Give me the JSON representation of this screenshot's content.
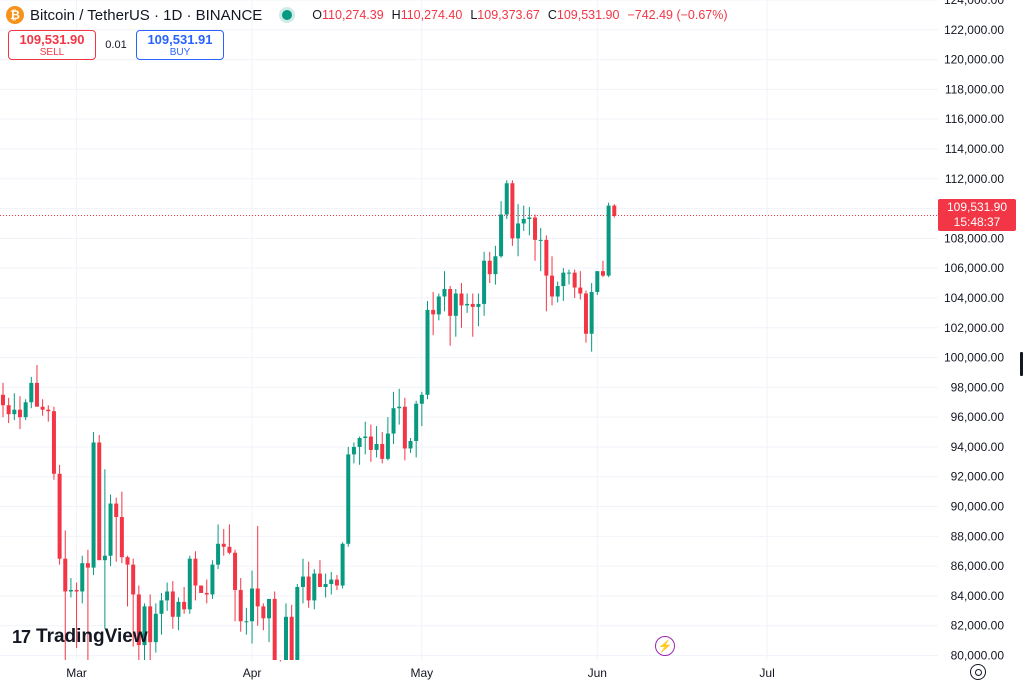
{
  "header": {
    "symbol_title": "Bitcoin / TetherUS · 1D · BINANCE",
    "coin_icon": "bitcoin-icon",
    "ohlc": {
      "o_label": "O",
      "o_value": "110,274.39",
      "h_label": "H",
      "h_value": "110,274.40",
      "l_label": "L",
      "l_value": "109,373.67",
      "c_label": "C",
      "c_value": "109,531.90",
      "change": "−742.49 (−0.67%)"
    }
  },
  "trade": {
    "sell_price": "109,531.90",
    "sell_label": "SELL",
    "spread": "0.01",
    "buy_price": "109,531.91",
    "buy_label": "BUY"
  },
  "last_price": {
    "value": "109,531.90",
    "countdown": "15:48:37"
  },
  "logo": {
    "text": "TradingView",
    "mark": "TV"
  },
  "colors": {
    "up": "#089981",
    "down": "#f23645",
    "buy": "#2962ff",
    "grid": "#f0f3fa"
  },
  "chart_data": {
    "type": "candlestick",
    "y_ticks": [
      80000,
      82000,
      84000,
      86000,
      88000,
      90000,
      92000,
      94000,
      96000,
      98000,
      100000,
      102000,
      104000,
      106000,
      108000,
      110000,
      112000,
      114000,
      116000,
      118000,
      120000,
      122000,
      124000
    ],
    "y_tick_labels": [
      "80,000.00",
      "82,000.00",
      "84,000.00",
      "86,000.00",
      "88,000.00",
      "90,000.00",
      "92,000.00",
      "94,000.00",
      "96,000.00",
      "98,000.00",
      "100,000.00",
      "102,000.00",
      "104,000.00",
      "106,000.00",
      "108,000.00",
      "110,000.00",
      "112,000.00",
      "114,000.00",
      "116,000.00",
      "118,000.00",
      "120,000.00",
      "122,000.00",
      "124,000.00"
    ],
    "x_labels": [
      {
        "label": "Mar",
        "day": 13
      },
      {
        "label": "Apr",
        "day": 44
      },
      {
        "label": "May",
        "day": 74
      },
      {
        "label": "Jun",
        "day": 105
      },
      {
        "label": "Jul",
        "day": 135
      }
    ],
    "last_price": 109531.9,
    "ylim": [
      79000,
      125000
    ],
    "candles": [
      [
        97500,
        98300,
        96000,
        96800
      ],
      [
        96800,
        97300,
        95600,
        96200
      ],
      [
        96200,
        97600,
        95800,
        96500
      ],
      [
        96500,
        97400,
        95200,
        96000
      ],
      [
        96000,
        97200,
        95800,
        97000
      ],
      [
        97000,
        98700,
        96600,
        98300
      ],
      [
        98300,
        99500,
        96800,
        96700
      ],
      [
        96700,
        97200,
        96100,
        96500
      ],
      [
        96500,
        96800,
        95700,
        96400
      ],
      [
        96400,
        96700,
        91800,
        92200
      ],
      [
        92200,
        92800,
        86100,
        86500
      ],
      [
        86500,
        88400,
        78200,
        84300
      ],
      [
        84300,
        85200,
        83900,
        84400
      ],
      [
        84400,
        84900,
        80500,
        84300
      ],
      [
        84300,
        86700,
        83500,
        86200
      ],
      [
        86200,
        87100,
        79300,
        85900
      ],
      [
        85900,
        95000,
        85400,
        94300
      ],
      [
        94300,
        94800,
        86400,
        86400
      ],
      [
        86400,
        92500,
        81800,
        86700
      ],
      [
        86700,
        90800,
        86000,
        90200
      ],
      [
        90200,
        90600,
        86300,
        89300
      ],
      [
        89300,
        91000,
        86200,
        86600
      ],
      [
        86600,
        86700,
        83300,
        86100
      ],
      [
        86100,
        86500,
        80600,
        84100
      ],
      [
        84100,
        84700,
        79000,
        80700
      ],
      [
        80700,
        83500,
        78200,
        83300
      ],
      [
        83300,
        84100,
        78700,
        80900
      ],
      [
        80900,
        83500,
        80200,
        82800
      ],
      [
        82800,
        84200,
        81400,
        83700
      ],
      [
        83700,
        84900,
        83000,
        84300
      ],
      [
        84300,
        85000,
        81800,
        82600
      ],
      [
        82600,
        83900,
        81700,
        83600
      ],
      [
        83600,
        84600,
        82800,
        83100
      ],
      [
        83100,
        86700,
        82800,
        86500
      ],
      [
        86500,
        87000,
        83700,
        84700
      ],
      [
        84700,
        84700,
        84200,
        84200
      ],
      [
        84200,
        85100,
        83500,
        84100
      ],
      [
        84100,
        86400,
        83800,
        86100
      ],
      [
        86100,
        88800,
        85800,
        87500
      ],
      [
        87500,
        88500,
        86700,
        87300
      ],
      [
        87300,
        88800,
        86800,
        86900
      ],
      [
        86900,
        87100,
        82300,
        84400
      ],
      [
        84400,
        85200,
        81600,
        82300
      ],
      [
        82300,
        83200,
        81400,
        82300
      ],
      [
        82300,
        85700,
        80800,
        84500
      ],
      [
        84500,
        88700,
        82000,
        83300
      ],
      [
        83300,
        83500,
        81700,
        82500
      ],
      [
        82500,
        83700,
        80900,
        83800
      ],
      [
        83800,
        84300,
        77000,
        78400
      ],
      [
        78400,
        79600,
        75000,
        76200
      ],
      [
        76200,
        83500,
        76000,
        82600
      ],
      [
        82600,
        83400,
        78700,
        79500
      ],
      [
        79500,
        84800,
        79100,
        84600
      ],
      [
        84600,
        86500,
        83500,
        85300
      ],
      [
        85300,
        86300,
        83200,
        83700
      ],
      [
        83700,
        85800,
        83100,
        85500
      ],
      [
        85500,
        86400,
        84700,
        84600
      ],
      [
        84600,
        85500,
        83900,
        84800
      ],
      [
        84800,
        85600,
        84100,
        85100
      ],
      [
        85100,
        85400,
        84400,
        84700
      ],
      [
        84700,
        87600,
        84500,
        87500
      ],
      [
        87500,
        94000,
        87300,
        93500
      ],
      [
        93500,
        94300,
        92900,
        94000
      ],
      [
        94000,
        94700,
        92800,
        94600
      ],
      [
        94600,
        95700,
        93500,
        94700
      ],
      [
        94700,
        95500,
        93000,
        93800
      ],
      [
        93800,
        95400,
        93300,
        94200
      ],
      [
        94200,
        95000,
        92900,
        93200
      ],
      [
        93200,
        96000,
        93100,
        94900
      ],
      [
        94900,
        97700,
        94200,
        96600
      ],
      [
        96600,
        97900,
        95500,
        96700
      ],
      [
        96700,
        97300,
        93100,
        93900
      ],
      [
        93900,
        94600,
        93600,
        94400
      ],
      [
        94400,
        97100,
        93300,
        96900
      ],
      [
        96900,
        97700,
        95400,
        97500
      ],
      [
        97500,
        103800,
        97200,
        103200
      ],
      [
        103200,
        104400,
        101500,
        102900
      ],
      [
        102900,
        104300,
        102500,
        104100
      ],
      [
        104100,
        105800,
        103100,
        104600
      ],
      [
        104600,
        104800,
        100800,
        102800
      ],
      [
        102800,
        104600,
        101400,
        104300
      ],
      [
        104300,
        105000,
        102000,
        103500
      ],
      [
        103500,
        104300,
        103000,
        103600
      ],
      [
        103600,
        104300,
        101400,
        103400
      ],
      [
        103400,
        104300,
        102100,
        103600
      ],
      [
        103600,
        107100,
        102800,
        106500
      ],
      [
        106500,
        107100,
        105000,
        105600
      ],
      [
        105600,
        107500,
        104900,
        106800
      ],
      [
        106800,
        110500,
        106700,
        109600
      ],
      [
        109600,
        111900,
        109300,
        111700
      ],
      [
        111700,
        111900,
        107500,
        108000
      ],
      [
        108000,
        110300,
        106800,
        109000
      ],
      [
        109000,
        110200,
        108500,
        109300
      ],
      [
        109300,
        110100,
        108200,
        109400
      ],
      [
        109400,
        109600,
        106500,
        107900
      ],
      [
        107900,
        108700,
        105800,
        107900
      ],
      [
        107900,
        108200,
        103100,
        105500
      ],
      [
        105500,
        106800,
        103500,
        104100
      ],
      [
        104100,
        105100,
        103700,
        104800
      ],
      [
        104800,
        106000,
        103800,
        105700
      ],
      [
        105700,
        105900,
        104900,
        105700
      ],
      [
        105700,
        105900,
        104000,
        104700
      ],
      [
        104700,
        105800,
        103900,
        104300
      ],
      [
        104300,
        104500,
        101000,
        101600
      ],
      [
        101600,
        105000,
        100400,
        104400
      ],
      [
        104400,
        105800,
        104200,
        105800
      ],
      [
        105800,
        106500,
        105400,
        105500
      ],
      [
        105500,
        110400,
        105400,
        110200
      ],
      [
        110200,
        110300,
        109400,
        109500
      ]
    ]
  }
}
